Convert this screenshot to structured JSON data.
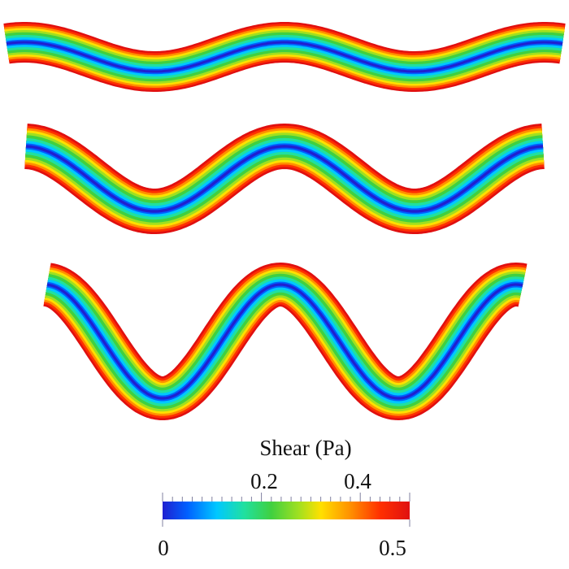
{
  "colorbar": {
    "title": "Shear (Pa)",
    "min_label": "0",
    "max_label": "0.5",
    "top_labels": [
      "0.2",
      "0.4"
    ],
    "range": [
      0,
      0.5
    ],
    "colors": [
      "#2020d0",
      "#0060ff",
      "#00c8ff",
      "#20e0a0",
      "#40d040",
      "#a0e020",
      "#ffe000",
      "#ff9000",
      "#ff3000",
      "#e01010"
    ]
  },
  "channels": [
    {
      "name": "low-amplitude"
    },
    {
      "name": "medium-amplitude"
    },
    {
      "name": "high-amplitude"
    }
  ]
}
